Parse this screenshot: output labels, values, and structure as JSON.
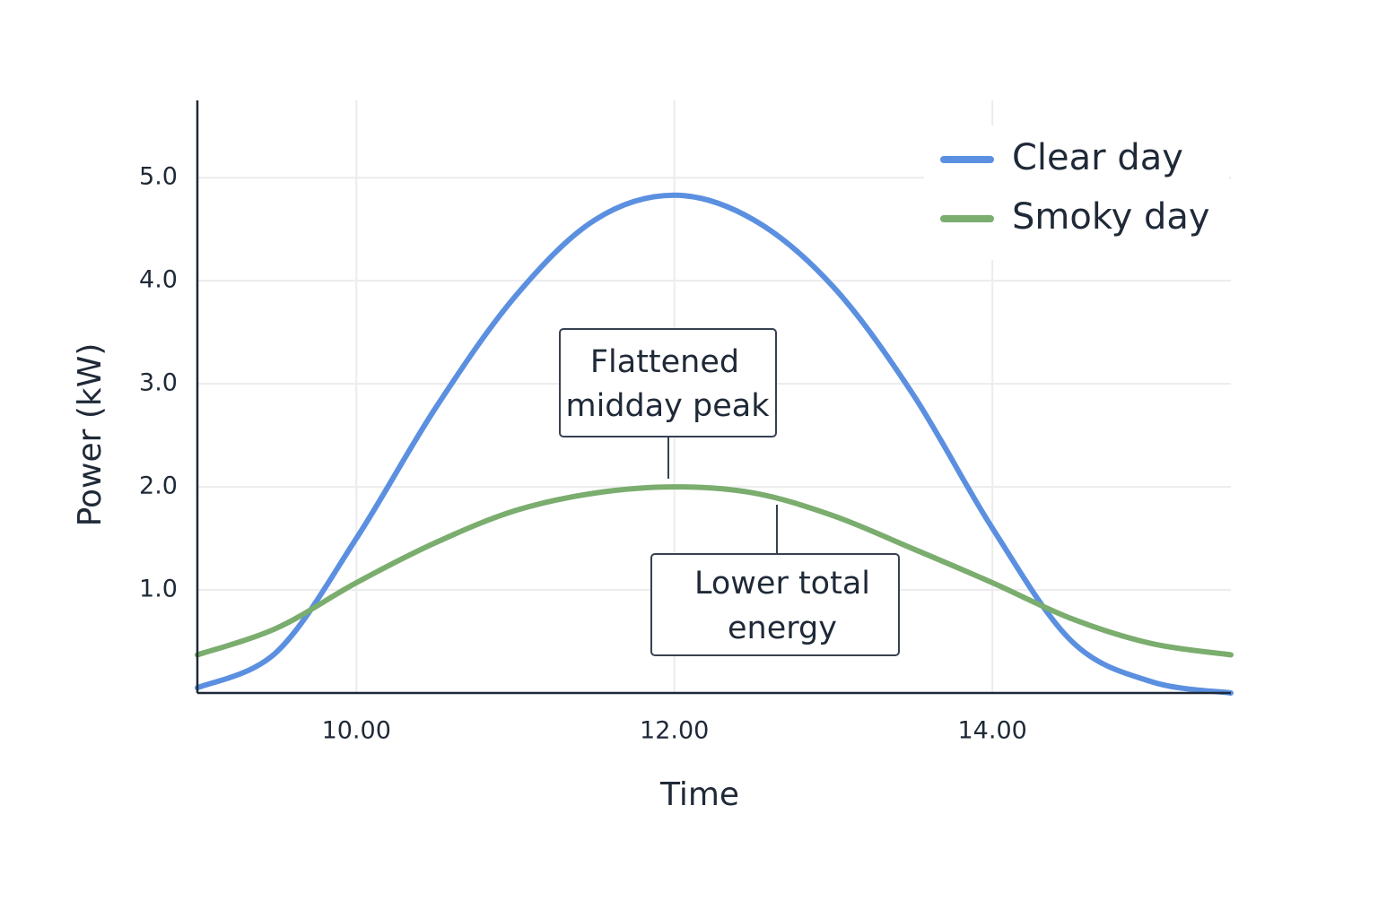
{
  "chart_data": {
    "type": "line",
    "x_label": "Time",
    "y_label": "Power (kW)",
    "x": [
      9,
      9.5,
      10,
      10.5,
      11,
      11.5,
      12,
      12.5,
      13,
      13.5,
      14,
      14.5,
      15,
      15.5
    ],
    "series": [
      {
        "name": "Clear day",
        "color": "#5b8fe0",
        "values": [
          0.05,
          0.4,
          1.5,
          2.77,
          3.85,
          4.59,
          4.83,
          4.59,
          3.94,
          2.9,
          1.6,
          0.5,
          0.11,
          0.0
        ]
      },
      {
        "name": "Smoky day",
        "color": "#7aad6e",
        "values": [
          0.37,
          0.63,
          1.07,
          1.46,
          1.77,
          1.94,
          2.0,
          1.94,
          1.72,
          1.4,
          1.07,
          0.72,
          0.48,
          0.37
        ]
      }
    ],
    "xlim": [
      9,
      15.5
    ],
    "ylim": [
      0,
      5.75
    ],
    "xticks": [
      {
        "value": 10,
        "label": "10.00"
      },
      {
        "value": 12,
        "label": "12.00"
      },
      {
        "value": 14,
        "label": "14.00"
      }
    ],
    "yticks": [
      {
        "value": 1,
        "label": "1.0"
      },
      {
        "value": 2,
        "label": "2.0"
      },
      {
        "value": 3,
        "label": "3.0"
      },
      {
        "value": 4,
        "label": "4.0"
      },
      {
        "value": 5,
        "label": "5.0"
      }
    ],
    "grid": true,
    "legend": "top-right",
    "annotations": [
      {
        "lines": [
          "Flattened",
          "midday peak"
        ]
      },
      {
        "lines": [
          "Lower total",
          "energy"
        ]
      }
    ]
  }
}
